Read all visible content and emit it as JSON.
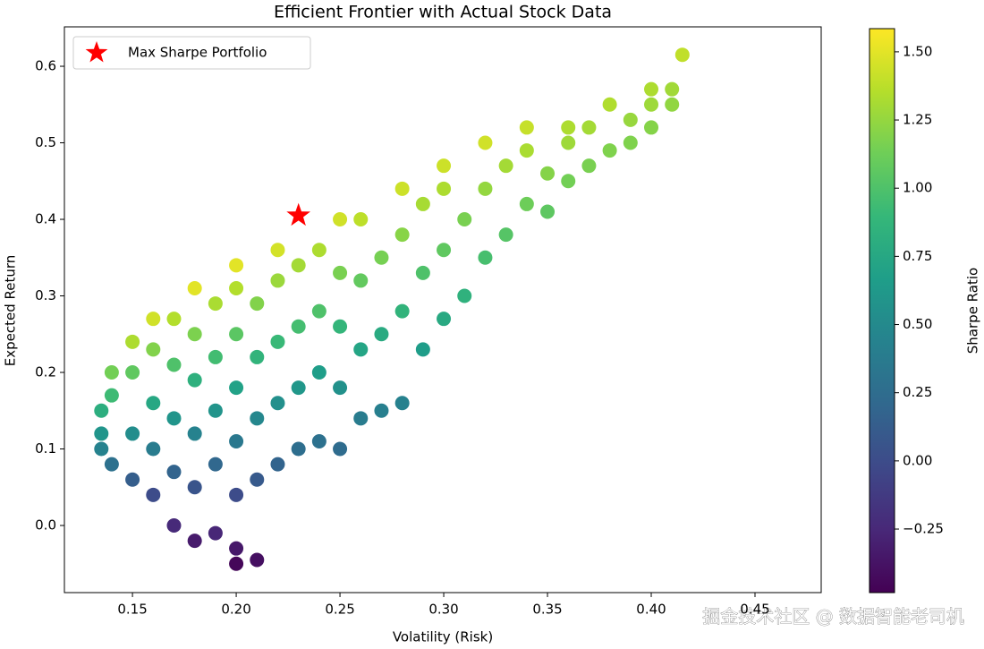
{
  "chart_data": {
    "type": "scatter",
    "title": "Efficient Frontier with Actual Stock Data",
    "x_label": "Volatility (Risk)",
    "y_label": "Expected Return",
    "xlim": [
      0.1172,
      0.4819
    ],
    "ylim": [
      -0.0877,
      0.6515
    ],
    "xticks": [
      0.15,
      {
        "value": 0.2,
        "label": "0.20"
      },
      0.25,
      {
        "value": 0.3,
        "label": "0.30"
      },
      0.35,
      {
        "value": 0.4,
        "label": "0.40"
      },
      0.45
    ],
    "yticks": [
      {
        "value": 0,
        "label": "0.0"
      },
      0.1,
      0.2,
      0.3,
      0.4,
      0.5,
      0.6
    ],
    "colormap": "viridis",
    "points": {
      "x": [
        0.135,
        0.14,
        0.15,
        0.16,
        0.18,
        0.2,
        0.22,
        0.25,
        0.28,
        0.3,
        0.32,
        0.34,
        0.36,
        0.38,
        0.4,
        0.415,
        0.4,
        0.135,
        0.135,
        0.14,
        0.14,
        0.15,
        0.15,
        0.15,
        0.16,
        0.16,
        0.16,
        0.16,
        0.17,
        0.17,
        0.17,
        0.17,
        0.17,
        0.18,
        0.18,
        0.18,
        0.18,
        0.18,
        0.19,
        0.19,
        0.19,
        0.19,
        0.19,
        0.2,
        0.2,
        0.2,
        0.2,
        0.2,
        0.2,
        0.2,
        0.21,
        0.21,
        0.21,
        0.21,
        0.21,
        0.22,
        0.22,
        0.22,
        0.22,
        0.23,
        0.23,
        0.23,
        0.23,
        0.24,
        0.24,
        0.24,
        0.24,
        0.25,
        0.25,
        0.25,
        0.25,
        0.26,
        0.26,
        0.26,
        0.26,
        0.27,
        0.27,
        0.27,
        0.28,
        0.28,
        0.28,
        0.29,
        0.29,
        0.29,
        0.3,
        0.3,
        0.3,
        0.31,
        0.31,
        0.32,
        0.32,
        0.33,
        0.33,
        0.34,
        0.34,
        0.35,
        0.35,
        0.36,
        0.36,
        0.37,
        0.37,
        0.38,
        0.39,
        0.39,
        0.4,
        0.41,
        0.41
      ],
      "y": [
        0.15,
        0.2,
        0.24,
        0.27,
        0.31,
        0.34,
        0.36,
        0.4,
        0.44,
        0.47,
        0.5,
        0.52,
        0.52,
        0.55,
        0.55,
        0.615,
        0.57,
        0.1,
        0.12,
        0.08,
        0.17,
        0.06,
        0.12,
        0.2,
        0.04,
        0.1,
        0.16,
        0.23,
        0.0,
        0.07,
        0.14,
        0.21,
        0.27,
        -0.02,
        0.05,
        0.12,
        0.19,
        0.25,
        -0.01,
        0.08,
        0.15,
        0.22,
        0.29,
        -0.05,
        -0.03,
        0.04,
        0.11,
        0.18,
        0.25,
        0.31,
        -0.045,
        0.06,
        0.14,
        0.22,
        0.29,
        0.08,
        0.16,
        0.24,
        0.32,
        0.1,
        0.18,
        0.26,
        0.34,
        0.11,
        0.2,
        0.28,
        0.36,
        0.1,
        0.18,
        0.26,
        0.33,
        0.14,
        0.23,
        0.32,
        0.4,
        0.15,
        0.25,
        0.35,
        0.16,
        0.28,
        0.38,
        0.23,
        0.33,
        0.42,
        0.27,
        0.36,
        0.44,
        0.3,
        0.4,
        0.35,
        0.44,
        0.38,
        0.47,
        0.42,
        0.49,
        0.41,
        0.46,
        0.45,
        0.5,
        0.47,
        0.52,
        0.49,
        0.5,
        0.53,
        0.52,
        0.55,
        0.57
      ],
      "sharpe": [
        0.81,
        1.14,
        1.33,
        1.44,
        1.5,
        1.5,
        1.45,
        1.44,
        1.43,
        1.43,
        1.44,
        1.41,
        1.33,
        1.34,
        1.28,
        1.39,
        1.33,
        0.44,
        0.59,
        0.29,
        0.93,
        0.13,
        0.53,
        1.07,
        0.0,
        0.38,
        0.75,
        1.19,
        -0.24,
        0.18,
        0.59,
        1.0,
        1.35,
        -0.33,
        0.06,
        0.44,
        0.83,
        1.17,
        -0.26,
        0.21,
        0.58,
        0.95,
        1.32,
        -0.45,
        -0.35,
        0.0,
        0.35,
        0.7,
        1.05,
        1.35,
        -0.4,
        0.1,
        0.48,
        0.86,
        1.19,
        0.18,
        0.55,
        0.91,
        1.27,
        0.26,
        0.61,
        0.96,
        1.3,
        0.29,
        0.67,
        1.0,
        1.33,
        0.24,
        0.56,
        0.88,
        1.16,
        0.38,
        0.73,
        1.08,
        1.38,
        0.41,
        0.78,
        1.15,
        0.43,
        0.86,
        1.21,
        0.66,
        1.0,
        1.31,
        0.77,
        1.07,
        1.33,
        0.84,
        1.16,
        0.97,
        1.25,
        1.03,
        1.3,
        1.12,
        1.32,
        1.06,
        1.2,
        1.14,
        1.28,
        1.16,
        1.3,
        1.18,
        1.18,
        1.26,
        1.2,
        1.24,
        1.29
      ]
    },
    "highlight": {
      "name": "Max Sharpe Portfolio",
      "color": "#ff0000",
      "x": [
        0.23
      ],
      "y": [
        0.405
      ]
    },
    "legend": "upper left",
    "colorbar": {
      "label": "Sharpe Ratio",
      "clim": [
        -0.483,
        1.585
      ],
      "ticks": [
        {
          "value": -0.25,
          "label": "−0.25"
        },
        {
          "value": 0,
          "label": "0.00"
        },
        0.25,
        {
          "value": 0.5,
          "label": "0.50"
        },
        0.75,
        {
          "value": 1,
          "label": "1.00"
        },
        1.25,
        {
          "value": 1.5,
          "label": "1.50"
        }
      ]
    }
  },
  "watermark": "掘金技术社区 @ 数据智能老司机"
}
